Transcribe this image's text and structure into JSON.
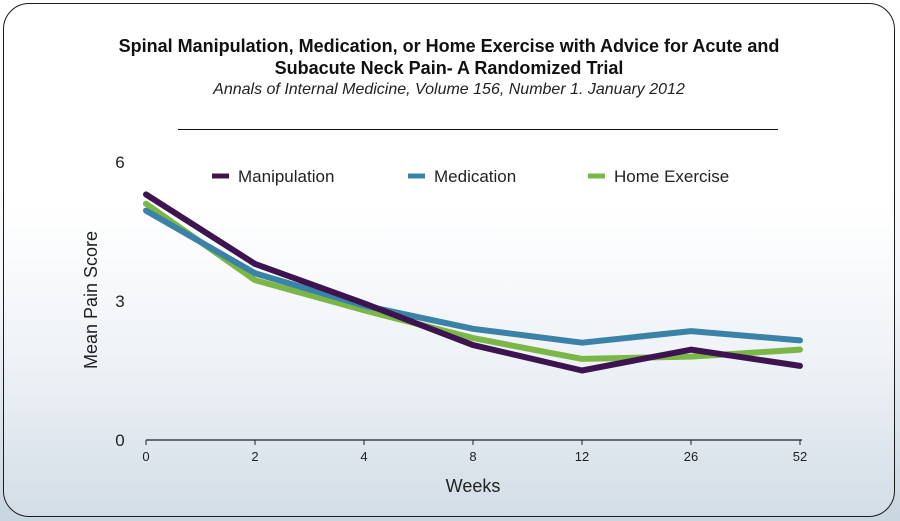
{
  "chart_data": {
    "type": "line",
    "title_line1": "Spinal Manipulation, Medication, or Home Exercise with Advice for Acute and",
    "title_line2": "Subacute Neck Pain- A Randomized Trial",
    "subtitle": "Annals of Internal Medicine, Volume 156, Number 1. January 2012",
    "xlabel": "Weeks",
    "ylabel": "Mean Pain Score",
    "categories": [
      "0",
      "2",
      "4",
      "8",
      "12",
      "26",
      "52"
    ],
    "yticks": [
      0,
      3,
      6
    ],
    "ylim": [
      0,
      6
    ],
    "legend_position": "top",
    "grid": false,
    "series": [
      {
        "name": "Manipulation",
        "color": "#3d1450",
        "values": [
          5.3,
          3.8,
          2.95,
          2.05,
          1.5,
          1.95,
          1.6
        ]
      },
      {
        "name": "Medication",
        "color": "#3b82a8",
        "values": [
          4.95,
          3.6,
          2.9,
          2.4,
          2.1,
          2.35,
          2.15
        ]
      },
      {
        "name": "Home Exercise",
        "color": "#7ab648",
        "values": [
          5.1,
          3.45,
          2.8,
          2.2,
          1.75,
          1.8,
          1.95
        ]
      }
    ]
  }
}
